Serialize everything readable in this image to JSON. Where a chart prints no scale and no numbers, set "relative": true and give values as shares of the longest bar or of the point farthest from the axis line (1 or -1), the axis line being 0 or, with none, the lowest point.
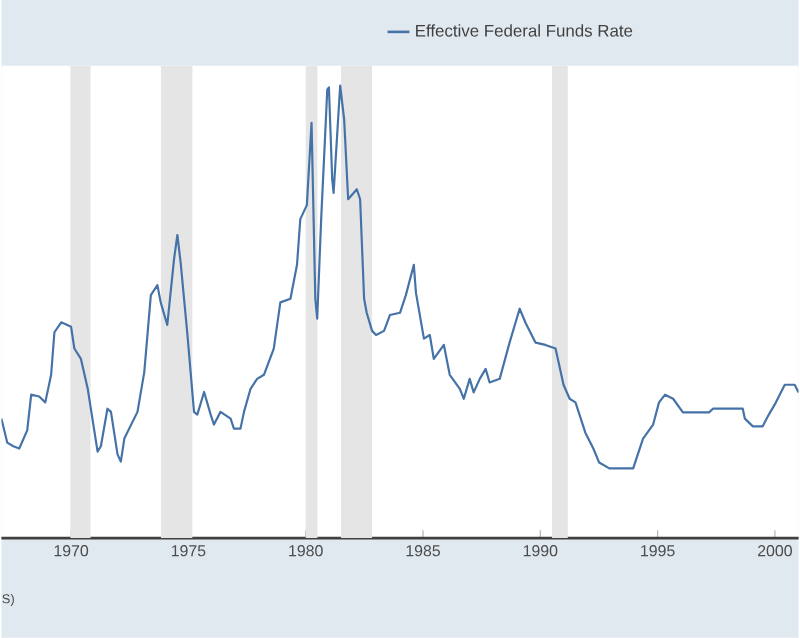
{
  "chart_data": {
    "type": "line",
    "relative": true,
    "tick_labels": "x",
    "legend": "top",
    "line_style": "solid",
    "xlim": [
      1967.03,
      2001.01
    ],
    "xticks": [
      1970,
      1975,
      1980,
      1985,
      1990,
      1995,
      2000
    ],
    "bands": [
      {
        "axis": "x",
        "from": 1969.97,
        "to": 1970.83,
        "label": null,
        "color": "#e5e5e5"
      },
      {
        "axis": "x",
        "from": 1973.83,
        "to": 1975.17,
        "label": null,
        "color": "#e5e5e5"
      },
      {
        "axis": "x",
        "from": 1980.0,
        "to": 1980.5,
        "label": null,
        "color": "#e5e5e5"
      },
      {
        "axis": "x",
        "from": 1981.5,
        "to": 1982.83,
        "label": null,
        "color": "#e5e5e5"
      },
      {
        "axis": "x",
        "from": 1990.5,
        "to": 1991.17,
        "label": null,
        "color": "#e5e5e5"
      }
    ],
    "annotations": [
      "S)"
    ],
    "series": [
      {
        "name": "Effective Federal Funds Rate",
        "color": "#4572a7",
        "x": [
          1967.03,
          1967.28,
          1967.54,
          1967.79,
          1968.13,
          1968.3,
          1968.64,
          1968.9,
          1969.15,
          1969.29,
          1969.58,
          1970.0,
          1970.14,
          1970.42,
          1970.71,
          1971.13,
          1971.27,
          1971.55,
          1971.7,
          1971.98,
          1972.12,
          1972.27,
          1972.83,
          1973.12,
          1973.4,
          1973.68,
          1973.82,
          1974.1,
          1974.39,
          1974.53,
          1974.67,
          1974.95,
          1975.24,
          1975.38,
          1975.67,
          1975.95,
          1976.09,
          1976.37,
          1976.8,
          1976.94,
          1977.22,
          1977.37,
          1977.65,
          1977.93,
          1978.22,
          1978.64,
          1978.92,
          1979.35,
          1979.63,
          1979.77,
          1980.05,
          1980.25,
          1980.41,
          1980.49,
          1980.66,
          1980.92,
          1980.99,
          1981.13,
          1981.19,
          1981.47,
          1981.64,
          1981.81,
          1982.18,
          1982.32,
          1982.49,
          1982.6,
          1982.83,
          1983.0,
          1983.34,
          1983.59,
          1984.02,
          1984.27,
          1984.61,
          1984.7,
          1985.04,
          1985.29,
          1985.46,
          1985.89,
          1986.14,
          1986.57,
          1986.74,
          1986.99,
          1987.16,
          1987.42,
          1987.67,
          1987.84,
          1988.27,
          1988.69,
          1989.12,
          1989.37,
          1989.8,
          1990.22,
          1990.65,
          1990.99,
          1991.25,
          1991.5,
          1991.92,
          1992.26,
          1992.51,
          1992.94,
          1993.96,
          1994.04,
          1994.38,
          1994.81,
          1995.06,
          1995.32,
          1995.66,
          1996.08,
          1997.19,
          1997.36,
          1998.63,
          1998.72,
          1999.06,
          1999.48,
          1999.74,
          1999.99,
          2000.42,
          2000.84,
          2001.01
        ],
        "values": [
          0.264,
          0.211,
          0.203,
          0.198,
          0.238,
          0.317,
          0.313,
          0.3,
          0.361,
          0.455,
          0.477,
          0.467,
          0.419,
          0.396,
          0.33,
          0.191,
          0.203,
          0.286,
          0.279,
          0.185,
          0.169,
          0.22,
          0.279,
          0.367,
          0.537,
          0.559,
          0.521,
          0.471,
          0.617,
          0.67,
          0.609,
          0.455,
          0.279,
          0.273,
          0.323,
          0.273,
          0.251,
          0.279,
          0.264,
          0.242,
          0.242,
          0.279,
          0.33,
          0.352,
          0.361,
          0.419,
          0.521,
          0.529,
          0.604,
          0.705,
          0.736,
          0.918,
          0.529,
          0.485,
          0.705,
          0.991,
          0.996,
          0.793,
          0.763,
          1.0,
          0.925,
          0.749,
          0.771,
          0.749,
          0.529,
          0.498,
          0.458,
          0.449,
          0.458,
          0.493,
          0.498,
          0.537,
          0.604,
          0.542,
          0.441,
          0.449,
          0.396,
          0.427,
          0.361,
          0.33,
          0.308,
          0.352,
          0.322,
          0.352,
          0.374,
          0.344,
          0.352,
          0.432,
          0.507,
          0.476,
          0.432,
          0.427,
          0.419,
          0.339,
          0.308,
          0.3,
          0.233,
          0.198,
          0.167,
          0.154,
          0.154,
          0.167,
          0.22,
          0.251,
          0.3,
          0.317,
          0.308,
          0.278,
          0.278,
          0.286,
          0.286,
          0.264,
          0.247,
          0.247,
          0.273,
          0.295,
          0.339,
          0.339,
          0.322
        ]
      }
    ]
  }
}
